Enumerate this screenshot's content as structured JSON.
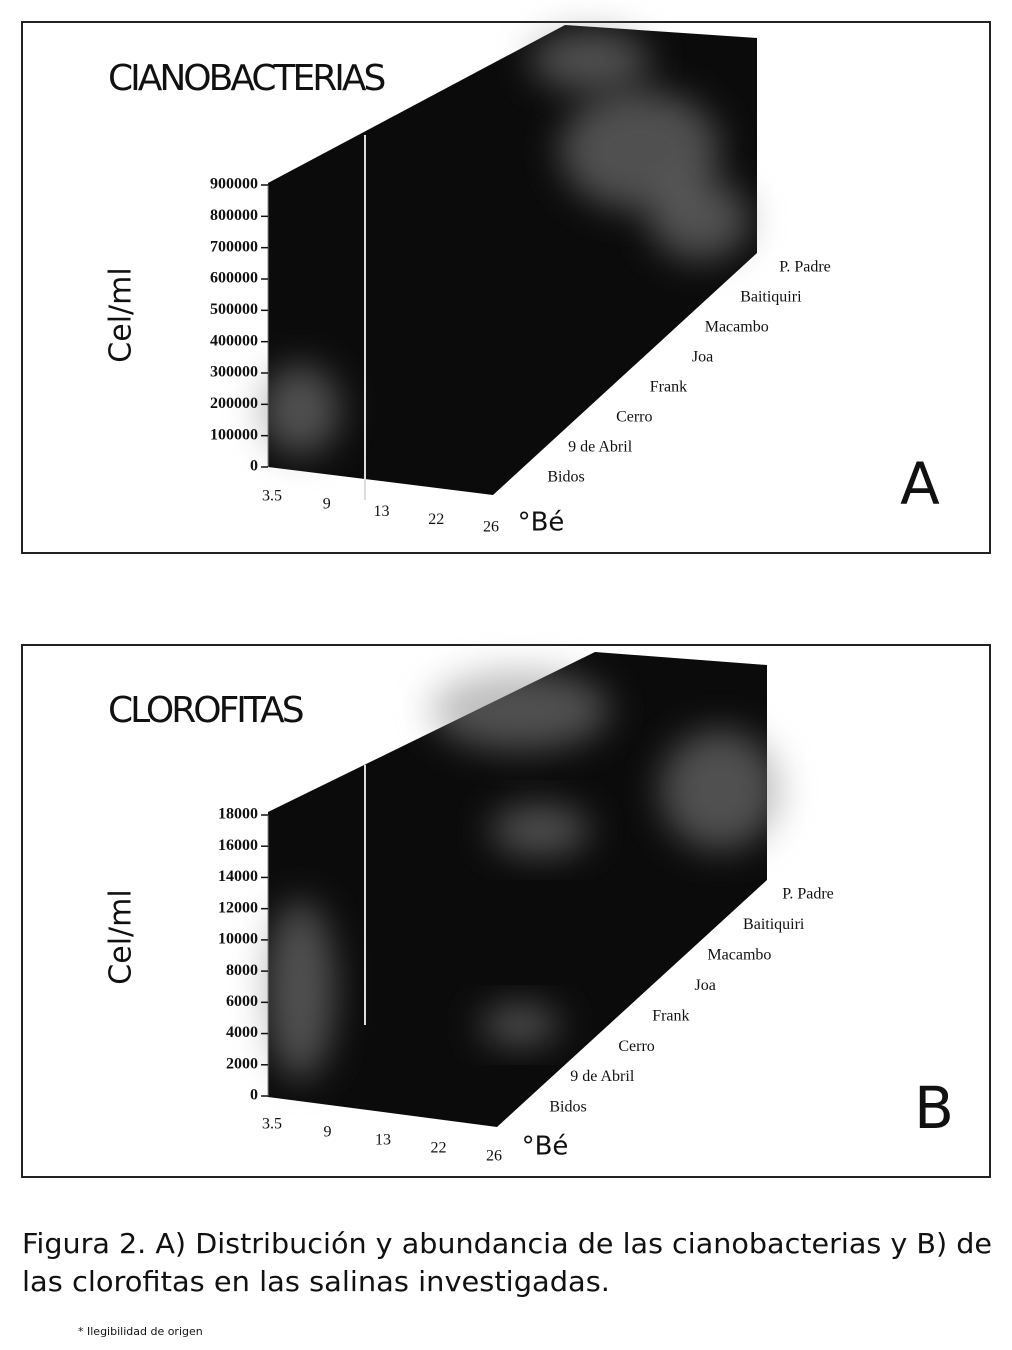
{
  "chart_data": [
    {
      "type": "bar3d",
      "title": "CIANOBACTERIAS",
      "y_label": "Cel/ml",
      "x_label": "°Bé",
      "panel_label": "A",
      "ylim": [
        0,
        900000
      ],
      "yticks": [
        0,
        100000,
        200000,
        300000,
        400000,
        500000,
        600000,
        700000,
        800000,
        900000
      ],
      "categories": [
        "3.5",
        "9",
        "13",
        "22",
        "26"
      ],
      "series_names": [
        "Bidos",
        "9 de Abril",
        "Cerro",
        "Frank",
        "Joa",
        "Macambo",
        "Baitiquiri",
        "P. Padre"
      ]
    },
    {
      "type": "bar3d",
      "title": "CLOROFITAS",
      "y_label": "Cel/ml",
      "x_label": "°Bé",
      "panel_label": "B",
      "ylim": [
        0,
        18000
      ],
      "yticks": [
        0,
        2000,
        4000,
        6000,
        8000,
        10000,
        12000,
        14000,
        16000,
        18000
      ],
      "categories": [
        "3.5",
        "9",
        "13",
        "22",
        "26"
      ],
      "series_names": [
        "Bidos",
        "9 de Abril",
        "Cerro",
        "Frank",
        "Joa",
        "Macambo",
        "Baitiquiri",
        "P. Padre"
      ]
    }
  ],
  "caption": [
    "Figura 2. A) Distribución y abundancia de las cianobacterias y B) de",
    "las clorofitas en las salinas investigadas."
  ],
  "footnote": "* Ilegibilidad de origen"
}
